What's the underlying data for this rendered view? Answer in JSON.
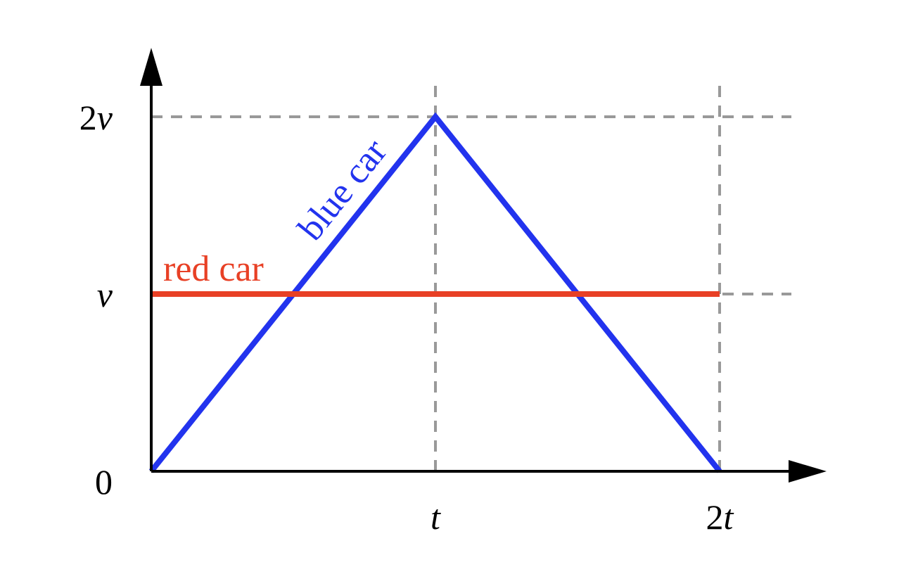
{
  "chart_data": {
    "type": "line",
    "title": "",
    "xlabel": "",
    "ylabel": "",
    "xlim": [
      0,
      2.3
    ],
    "ylim": [
      0,
      2.2
    ],
    "x_ticks": [
      {
        "value": 1,
        "label": "t"
      },
      {
        "value": 2,
        "label": "2t"
      }
    ],
    "y_ticks": [
      {
        "value": 0,
        "label": "0"
      },
      {
        "value": 1,
        "label": "v"
      },
      {
        "value": 2,
        "label": "2v"
      }
    ],
    "series": [
      {
        "name": "blue car",
        "color": "#2233ee",
        "x": [
          0,
          1,
          2
        ],
        "y": [
          0,
          2,
          0
        ]
      },
      {
        "name": "red car",
        "color": "#e84025",
        "x": [
          0,
          2
        ],
        "y": [
          1,
          1
        ]
      }
    ],
    "reference_lines": [
      {
        "orientation": "vertical",
        "value": 1
      },
      {
        "orientation": "vertical",
        "value": 2
      },
      {
        "orientation": "horizontal",
        "value": 2
      },
      {
        "orientation": "horizontal",
        "value": 1
      }
    ],
    "axis_color": "#000000",
    "reference_line_color": "#999999"
  }
}
